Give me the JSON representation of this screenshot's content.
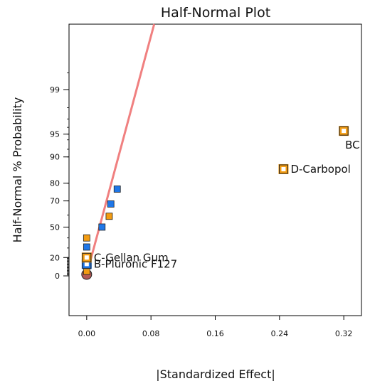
{
  "chart_data": {
    "type": "scatter",
    "title": "Half-Normal Plot",
    "xlabel": "|Standardized Effect|",
    "ylabel": "Half-Normal % Probability",
    "xlim": [
      -0.022,
      0.342
    ],
    "x_ticks": [
      "0.00",
      "0.08",
      "0.16",
      "0.24",
      "0.32"
    ],
    "x_tick_values": [
      0.0,
      0.08,
      0.16,
      0.24,
      0.32
    ],
    "y_ticks": [
      "0",
      "20",
      "50",
      "70",
      "80",
      "90",
      "95",
      "99"
    ],
    "y_tick_values": [
      0,
      20,
      50,
      70,
      80,
      90,
      95,
      99
    ],
    "y_scale": "half-normal probability",
    "fit_line": {
      "color": "#f08080",
      "points": [
        {
          "x": 0.0,
          "y": 0
        },
        {
          "x": 0.084,
          "y": 99.9
        }
      ]
    },
    "colors": {
      "positive": "#f39c12",
      "negative": "#1f77e8",
      "error": "#b55a55",
      "frame": "#000000"
    },
    "points": [
      {
        "x": 0.0,
        "y": 0,
        "kind": "error",
        "label": ""
      },
      {
        "x": 0.0,
        "y": 5,
        "kind": "positive",
        "label": ""
      },
      {
        "x": 0.0,
        "y": 13,
        "kind": "negative",
        "label": "B-Pluronic F127"
      },
      {
        "x": 0.0,
        "y": 20,
        "kind": "positive",
        "label": "C-Gellan Gum"
      },
      {
        "x": 0.0,
        "y": 31,
        "kind": "negative",
        "label": ""
      },
      {
        "x": 0.0,
        "y": 40,
        "kind": "positive",
        "label": ""
      },
      {
        "x": 0.019,
        "y": 50,
        "kind": "negative",
        "label": ""
      },
      {
        "x": 0.028,
        "y": 59,
        "kind": "positive",
        "label": ""
      },
      {
        "x": 0.03,
        "y": 68,
        "kind": "negative",
        "label": ""
      },
      {
        "x": 0.038,
        "y": 77,
        "kind": "negative",
        "label": ""
      },
      {
        "x": 0.245,
        "y": 86,
        "kind": "positive",
        "label": "D-Carbopol"
      },
      {
        "x": 0.32,
        "y": 95.5,
        "kind": "positive",
        "label": "BC"
      }
    ]
  }
}
